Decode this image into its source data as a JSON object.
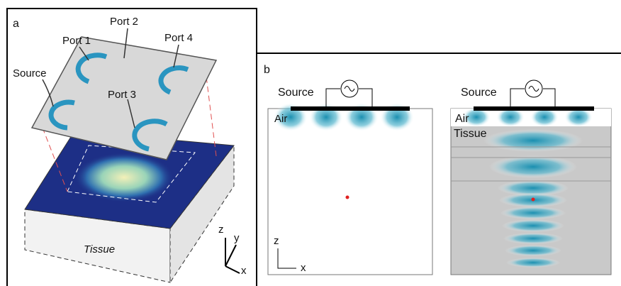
{
  "panel_a": {
    "label": "a",
    "ports": [
      "Port 1",
      "Port 2",
      "Port 3",
      "Port 4"
    ],
    "source": "Source",
    "tissue": "Tissue",
    "axes": [
      "z",
      "y",
      "x"
    ]
  },
  "panel_b": {
    "label": "b",
    "left": {
      "source": "Source",
      "medium": "Air",
      "axes": [
        "z",
        "x"
      ]
    },
    "right": {
      "source": "Source",
      "media": [
        "Air",
        "Tissue"
      ]
    }
  }
}
